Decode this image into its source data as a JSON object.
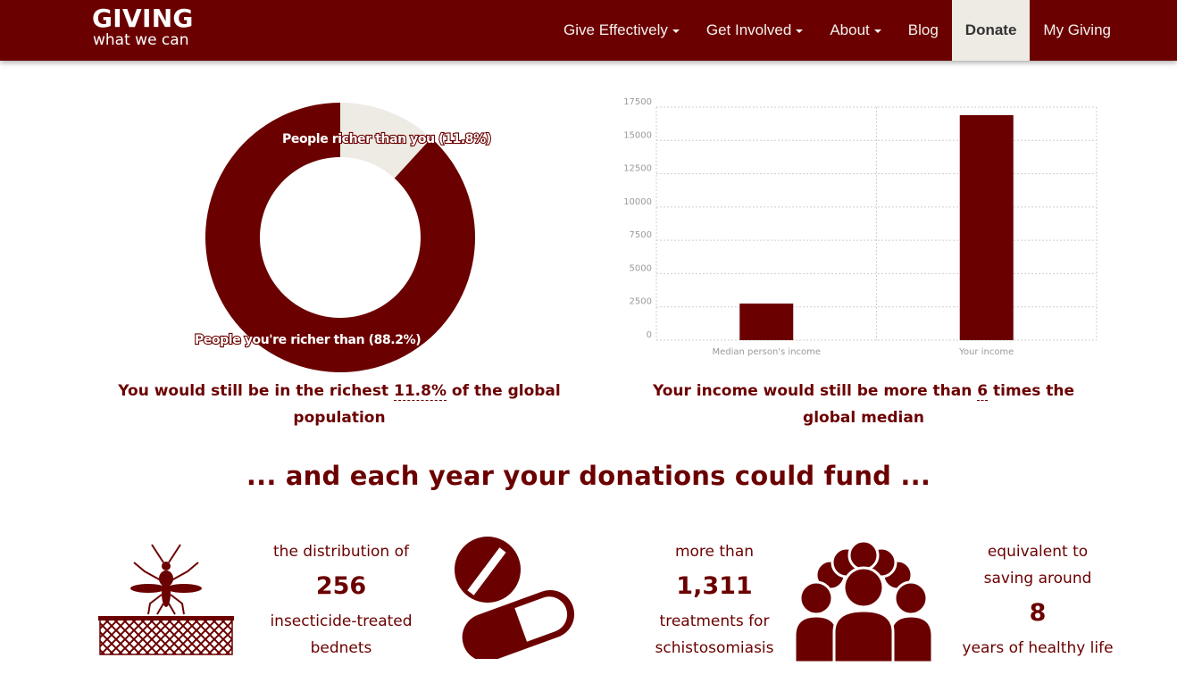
{
  "nav": {
    "logo_top": "GIVING",
    "logo_bottom": "what we can",
    "items": [
      {
        "label": "Give Effectively",
        "dropdown": true
      },
      {
        "label": "Get Involved",
        "dropdown": true
      },
      {
        "label": "About",
        "dropdown": true
      },
      {
        "label": "Blog",
        "dropdown": false
      },
      {
        "label": "Donate",
        "dropdown": false,
        "active": true
      },
      {
        "label": "My Giving",
        "dropdown": false
      }
    ]
  },
  "chart_data": [
    {
      "type": "pie",
      "labels": [
        "People richer than you (11.8%)",
        "People you're richer than (88.2%)"
      ],
      "values": [
        11.8,
        88.2
      ],
      "colors": [
        "#eeebe4",
        "#6b0000"
      ]
    },
    {
      "type": "bar",
      "categories": [
        "Median person's income",
        "Your income"
      ],
      "values": [
        2750,
        16900
      ],
      "ylim": [
        0,
        17500
      ],
      "yticks": [
        0,
        2500,
        5000,
        7500,
        10000,
        12500,
        15000,
        17500
      ],
      "grid": true,
      "color": "#6b0000"
    }
  ],
  "captions": {
    "left_pre": "You would still be in the richest ",
    "left_value": "11.8%",
    "left_post": " of the global population",
    "right_pre": "Your income would still be more than ",
    "right_value": "6",
    "right_post": " times the global median"
  },
  "headline": "... and each year your donations could fund ...",
  "impacts": [
    {
      "icon": "mosquito-bednet-icon",
      "pre": "the distribution of",
      "number": "256",
      "post": [
        "insecticide-treated",
        "bednets"
      ]
    },
    {
      "icon": "pill-icon",
      "pre": "more than",
      "number": "1,311",
      "post": [
        "treatments for",
        "schistosomiasis"
      ]
    },
    {
      "icon": "people-icon",
      "pre": [
        "equivalent to",
        "saving around"
      ],
      "number": "8",
      "post": [
        "years of healthy life"
      ]
    }
  ],
  "colors": {
    "brand": "#6b0000",
    "light": "#eeebe4"
  }
}
